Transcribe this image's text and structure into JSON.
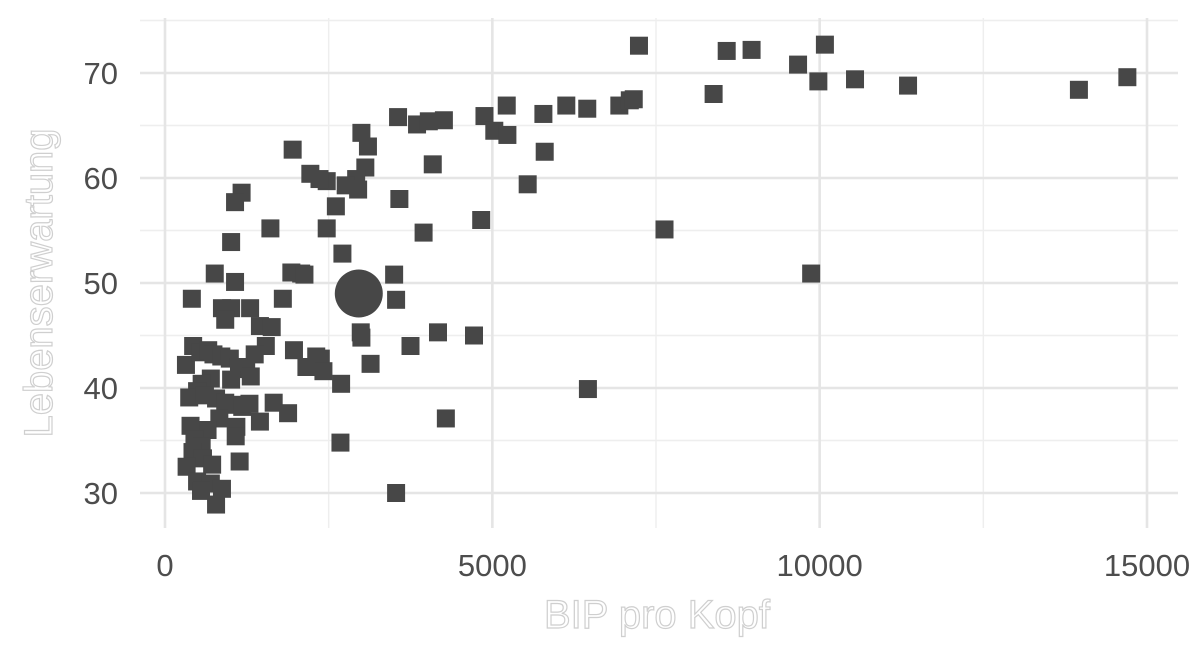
{
  "chart_data": {
    "type": "scatter",
    "xlabel": "BIP pro Kopf",
    "ylabel": "Lebenserwartung",
    "xlim": [
      -100,
      15100
    ],
    "ylim": [
      27,
      75.5
    ],
    "x_ticks": [
      0,
      5000,
      10000,
      15000
    ],
    "x_tick_labels": [
      "0",
      "5000",
      "10000",
      "15000"
    ],
    "y_ticks": [
      30,
      40,
      50,
      60,
      70
    ],
    "y_tick_labels": [
      "30",
      "40",
      "50",
      "60",
      "70"
    ],
    "grid": true,
    "legend": "none",
    "point_color": "#474747",
    "marker": "square",
    "highlight": {
      "x": 2960,
      "y": 49,
      "marker": "circle"
    },
    "points": [
      [
        7240,
        72.6
      ],
      [
        8580,
        72.1
      ],
      [
        8960,
        72.2
      ],
      [
        10080,
        72.7
      ],
      [
        9670,
        70.8
      ],
      [
        9980,
        69.2
      ],
      [
        10540,
        69.4
      ],
      [
        11350,
        68.8
      ],
      [
        14700,
        69.6
      ],
      [
        13960,
        68.4
      ],
      [
        8380,
        68.0
      ],
      [
        6940,
        66.9
      ],
      [
        7100,
        67.4
      ],
      [
        7160,
        67.5
      ],
      [
        6130,
        66.9
      ],
      [
        6450,
        66.6
      ],
      [
        5220,
        66.9
      ],
      [
        5780,
        66.1
      ],
      [
        4880,
        65.9
      ],
      [
        5030,
        64.5
      ],
      [
        5230,
        64.1
      ],
      [
        3560,
        65.8
      ],
      [
        3850,
        65.1
      ],
      [
        4030,
        65.4
      ],
      [
        4260,
        65.5
      ],
      [
        3000,
        64.3
      ],
      [
        3100,
        63.0
      ],
      [
        3060,
        61.0
      ],
      [
        2920,
        59.9
      ],
      [
        2760,
        59.3
      ],
      [
        2950,
        58.9
      ],
      [
        2220,
        60.4
      ],
      [
        2470,
        59.7
      ],
      [
        2360,
        59.9
      ],
      [
        2610,
        57.3
      ],
      [
        1950,
        62.7
      ],
      [
        4090,
        61.3
      ],
      [
        5800,
        62.5
      ],
      [
        5540,
        59.4
      ],
      [
        3580,
        58.0
      ],
      [
        1170,
        58.6
      ],
      [
        1070,
        57.7
      ],
      [
        3950,
        54.8
      ],
      [
        4830,
        56.0
      ],
      [
        7630,
        55.1
      ],
      [
        9870,
        50.9
      ],
      [
        1610,
        55.2
      ],
      [
        1010,
        53.9
      ],
      [
        2470,
        55.2
      ],
      [
        2710,
        52.8
      ],
      [
        1930,
        51.0
      ],
      [
        2080,
        50.9
      ],
      [
        2130,
        50.8
      ],
      [
        3500,
        50.8
      ],
      [
        3530,
        48.4
      ],
      [
        1070,
        50.1
      ],
      [
        760,
        50.9
      ],
      [
        1800,
        48.5
      ],
      [
        410,
        48.5
      ],
      [
        870,
        47.6
      ],
      [
        1010,
        47.6
      ],
      [
        1300,
        47.6
      ],
      [
        1450,
        45.9
      ],
      [
        1630,
        45.8
      ],
      [
        2990,
        45.3
      ],
      [
        3000,
        44.8
      ],
      [
        4170,
        45.3
      ],
      [
        4720,
        45.0
      ],
      [
        3750,
        44.0
      ],
      [
        920,
        46.5
      ],
      [
        1540,
        44.0
      ],
      [
        1370,
        43.2
      ],
      [
        1970,
        43.6
      ],
      [
        2310,
        43.0
      ],
      [
        2380,
        42.8
      ],
      [
        2160,
        42.0
      ],
      [
        2420,
        41.6
      ],
      [
        3140,
        42.3
      ],
      [
        2690,
        40.4
      ],
      [
        6460,
        39.9
      ],
      [
        4290,
        37.1
      ],
      [
        2680,
        34.8
      ],
      [
        3530,
        30.0
      ],
      [
        320,
        42.2
      ],
      [
        430,
        44.0
      ],
      [
        540,
        43.4
      ],
      [
        660,
        43.6
      ],
      [
        740,
        43.2
      ],
      [
        860,
        43.0
      ],
      [
        990,
        42.8
      ],
      [
        1130,
        42.0
      ],
      [
        1240,
        41.8
      ],
      [
        1310,
        41.1
      ],
      [
        1010,
        40.8
      ],
      [
        700,
        40.9
      ],
      [
        560,
        40.4
      ],
      [
        490,
        39.7
      ],
      [
        370,
        39.1
      ],
      [
        610,
        39.3
      ],
      [
        780,
        39.0
      ],
      [
        920,
        38.6
      ],
      [
        1050,
        38.4
      ],
      [
        1180,
        38.2
      ],
      [
        1290,
        38.5
      ],
      [
        1660,
        38.6
      ],
      [
        1880,
        37.6
      ],
      [
        1450,
        36.8
      ],
      [
        1090,
        36.3
      ],
      [
        830,
        37.1
      ],
      [
        650,
        36.0
      ],
      [
        390,
        36.4
      ],
      [
        450,
        35.1
      ],
      [
        560,
        34.4
      ],
      [
        1080,
        35.4
      ],
      [
        420,
        33.9
      ],
      [
        580,
        33.3
      ],
      [
        330,
        32.5
      ],
      [
        720,
        32.7
      ],
      [
        1140,
        33.0
      ],
      [
        490,
        31.1
      ],
      [
        700,
        30.9
      ],
      [
        550,
        30.2
      ],
      [
        870,
        30.4
      ],
      [
        780,
        28.9
      ]
    ]
  }
}
